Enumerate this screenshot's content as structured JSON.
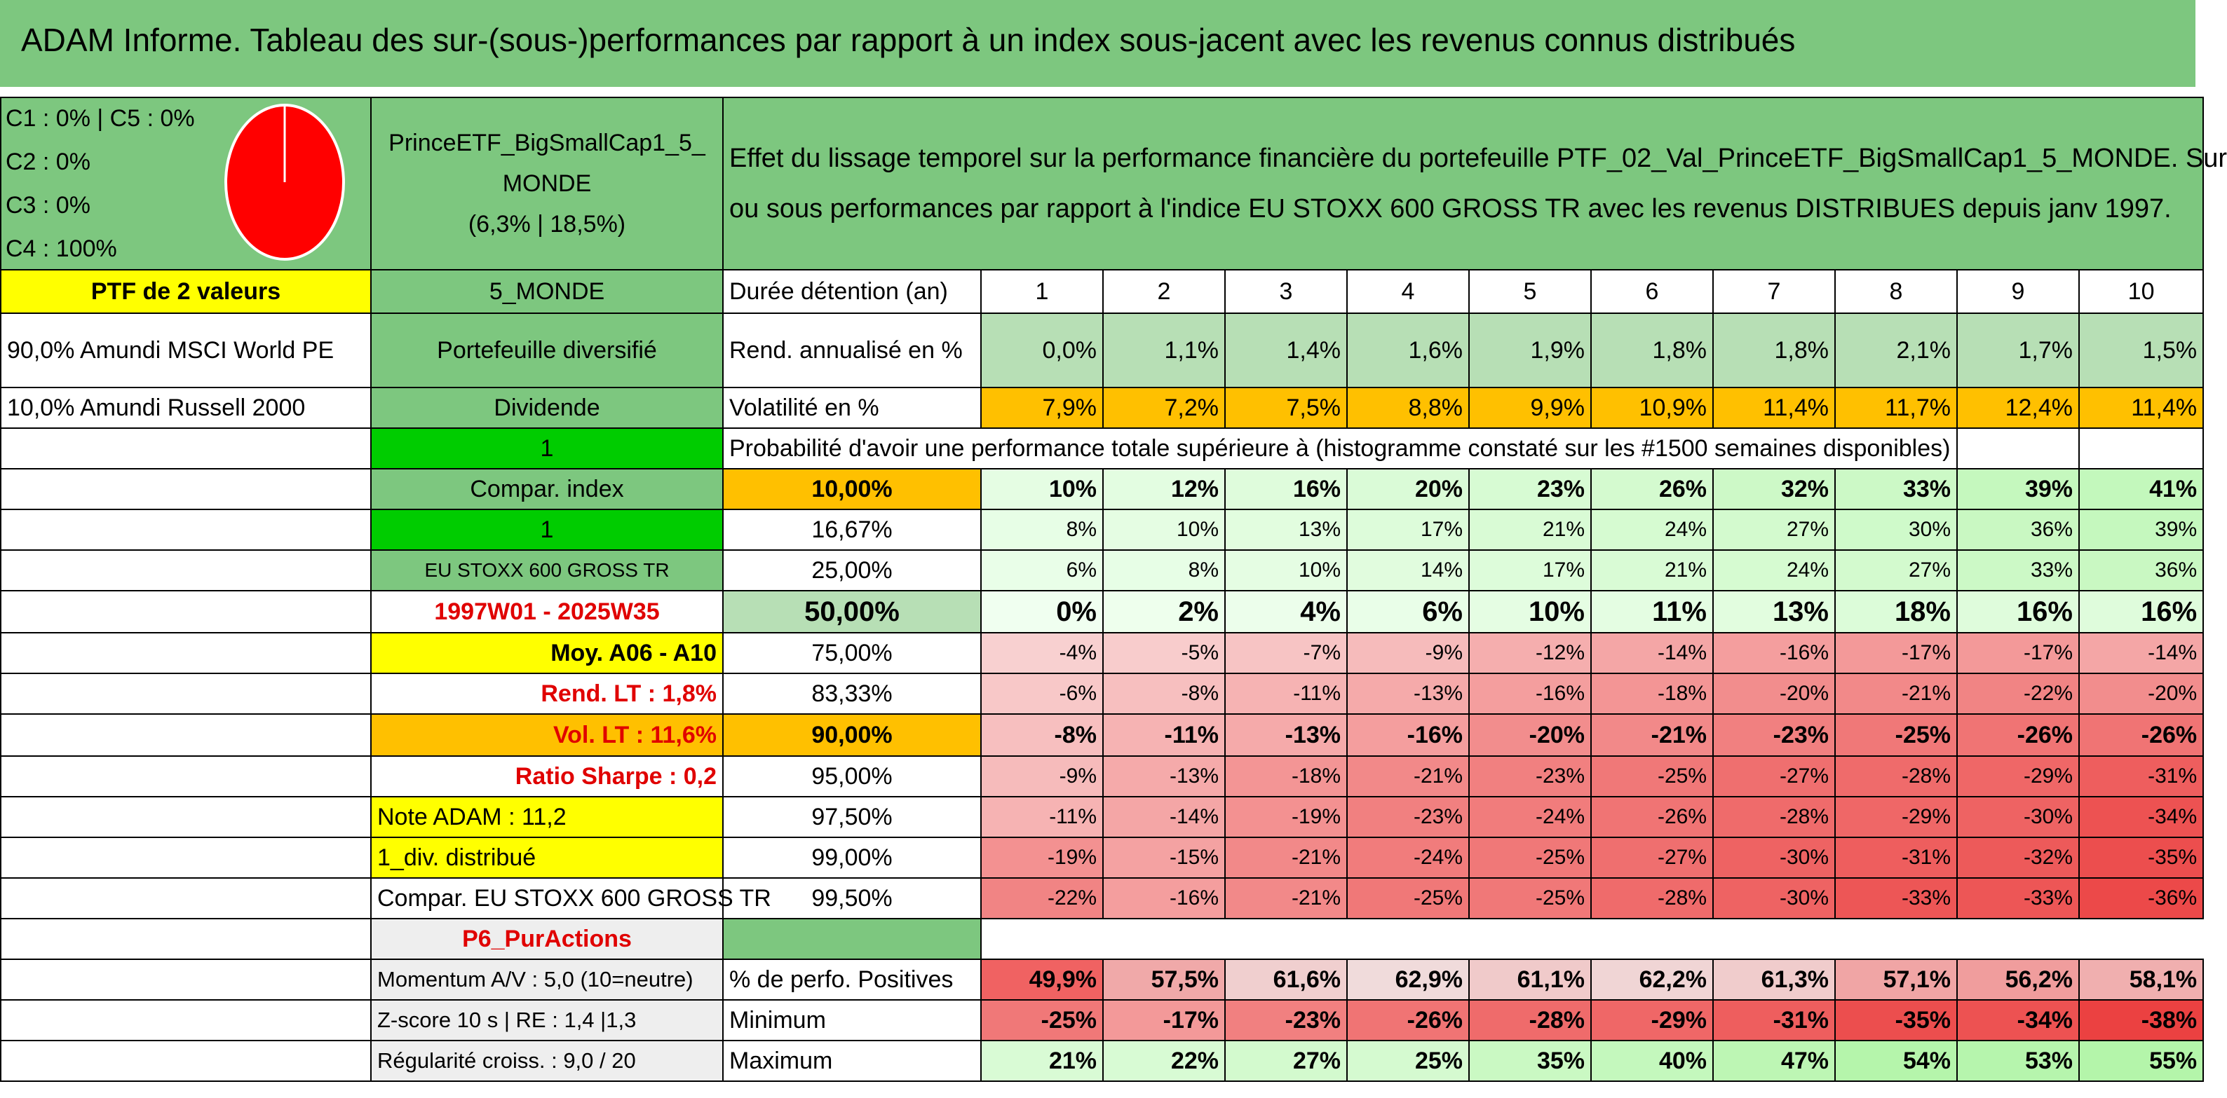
{
  "title": "ADAM Informe. Tableau des sur-(sous-)performances par rapport à un index sous-jacent avec les revenus connus distribués",
  "header": {
    "classes": [
      "C1 : 0% | C5 : 0%",
      "C2 : 0%",
      "C3 : 0%",
      "C4 : 100%"
    ],
    "pie": {
      "C4": 100,
      "color": "#ff0000"
    },
    "portfolio_name_1": "PrinceETF_BigSmallCap1_5_",
    "portfolio_name_2": "MONDE",
    "portfolio_stats": "(6,3% | 18,5%)",
    "description_1": "Effet du lissage temporel sur la performance financière du portefeuille PTF_02_Val_PrinceETF_BigSmallCap1_5_MONDE. Sur",
    "description_2": "ou sous performances par rapport à l'indice EU STOXX 600 GROSS TR avec les revenus DISTRIBUES depuis janv 1997."
  },
  "left": {
    "ptf_label": "PTF de 2 valeurs",
    "holding_1": "90,0% Amundi MSCI World PE",
    "holding_2": "10,0% Amundi Russell 2000",
    "region": "5_MONDE",
    "diversified": "Portefeuille diversifié",
    "dividend": "Dividende",
    "one_a": "1",
    "compar_index": "Compar. index",
    "one_b": "1",
    "index_name": "EU STOXX 600 GROSS TR",
    "period": "1997W01 - 2025W35",
    "moy": "Moy. A06 - A10",
    "rend_lt": "Rend. LT : 1,8%",
    "vol_lt": "Vol. LT : 11,6%",
    "sharpe": "Ratio Sharpe : 0,2",
    "note": "Note ADAM : 11,2",
    "div": "1_div. distribué",
    "compar_full": "Compar. EU STOXX 600 GROSS TR",
    "p6": "P6_PurActions",
    "momentum": "Momentum A/V : 5,0 (10=neutre)",
    "zscore": "Z-score 10 s | RE : 1,4 |1,3",
    "regularite": "Régularité croiss. : 9,0 / 20"
  },
  "table": {
    "duration_label": "Durée détention (an)",
    "years": [
      "1",
      "2",
      "3",
      "4",
      "5",
      "6",
      "7",
      "8",
      "9",
      "10"
    ],
    "rend_label": "Rend. annualisé en %",
    "rend": [
      "0,0%",
      "1,1%",
      "1,4%",
      "1,6%",
      "1,9%",
      "1,8%",
      "1,8%",
      "2,1%",
      "1,7%",
      "1,5%"
    ],
    "vol_label": "Volatilité en %",
    "vol": [
      "7,9%",
      "7,2%",
      "7,5%",
      "8,8%",
      "9,9%",
      "10,9%",
      "11,4%",
      "11,7%",
      "12,4%",
      "11,4%"
    ],
    "proba_label": "Probabilité d'avoir une performance totale supérieure à (histogramme constaté sur les #1500 semaines disponibles)",
    "quantiles": [
      {
        "q": "10,00%",
        "v": [
          "10%",
          "12%",
          "16%",
          "20%",
          "23%",
          "26%",
          "32%",
          "33%",
          "39%",
          "41%"
        ]
      },
      {
        "q": "16,67%",
        "v": [
          "8%",
          "10%",
          "13%",
          "17%",
          "21%",
          "24%",
          "27%",
          "30%",
          "36%",
          "39%"
        ]
      },
      {
        "q": "25,00%",
        "v": [
          "6%",
          "8%",
          "10%",
          "14%",
          "17%",
          "21%",
          "24%",
          "27%",
          "33%",
          "36%"
        ]
      },
      {
        "q": "50,00%",
        "v": [
          "0%",
          "2%",
          "4%",
          "6%",
          "10%",
          "11%",
          "13%",
          "18%",
          "16%",
          "16%"
        ]
      },
      {
        "q": "75,00%",
        "v": [
          "-4%",
          "-5%",
          "-7%",
          "-9%",
          "-12%",
          "-14%",
          "-16%",
          "-17%",
          "-17%",
          "-14%"
        ]
      },
      {
        "q": "83,33%",
        "v": [
          "-6%",
          "-8%",
          "-11%",
          "-13%",
          "-16%",
          "-18%",
          "-20%",
          "-21%",
          "-22%",
          "-20%"
        ]
      },
      {
        "q": "90,00%",
        "v": [
          "-8%",
          "-11%",
          "-13%",
          "-16%",
          "-20%",
          "-21%",
          "-23%",
          "-25%",
          "-26%",
          "-26%"
        ]
      },
      {
        "q": "95,00%",
        "v": [
          "-9%",
          "-13%",
          "-18%",
          "-21%",
          "-23%",
          "-25%",
          "-27%",
          "-28%",
          "-29%",
          "-31%"
        ]
      },
      {
        "q": "97,50%",
        "v": [
          "-11%",
          "-14%",
          "-19%",
          "-23%",
          "-24%",
          "-26%",
          "-28%",
          "-29%",
          "-30%",
          "-34%"
        ]
      },
      {
        "q": "99,00%",
        "v": [
          "-19%",
          "-15%",
          "-21%",
          "-24%",
          "-25%",
          "-27%",
          "-30%",
          "-31%",
          "-32%",
          "-35%"
        ]
      },
      {
        "q": "99,50%",
        "v": [
          "-22%",
          "-16%",
          "-21%",
          "-25%",
          "-25%",
          "-28%",
          "-30%",
          "-33%",
          "-33%",
          "-36%"
        ]
      }
    ],
    "pos_label": "% de perfo. Positives",
    "pos": [
      "49,9%",
      "57,5%",
      "61,6%",
      "62,9%",
      "61,1%",
      "62,2%",
      "61,3%",
      "57,1%",
      "56,2%",
      "58,1%"
    ],
    "min_label": "Minimum",
    "min": [
      "-25%",
      "-17%",
      "-23%",
      "-26%",
      "-28%",
      "-29%",
      "-31%",
      "-35%",
      "-34%",
      "-38%"
    ],
    "max_label": "Maximum",
    "max": [
      "21%",
      "22%",
      "27%",
      "25%",
      "35%",
      "40%",
      "47%",
      "54%",
      "53%",
      "55%"
    ]
  }
}
